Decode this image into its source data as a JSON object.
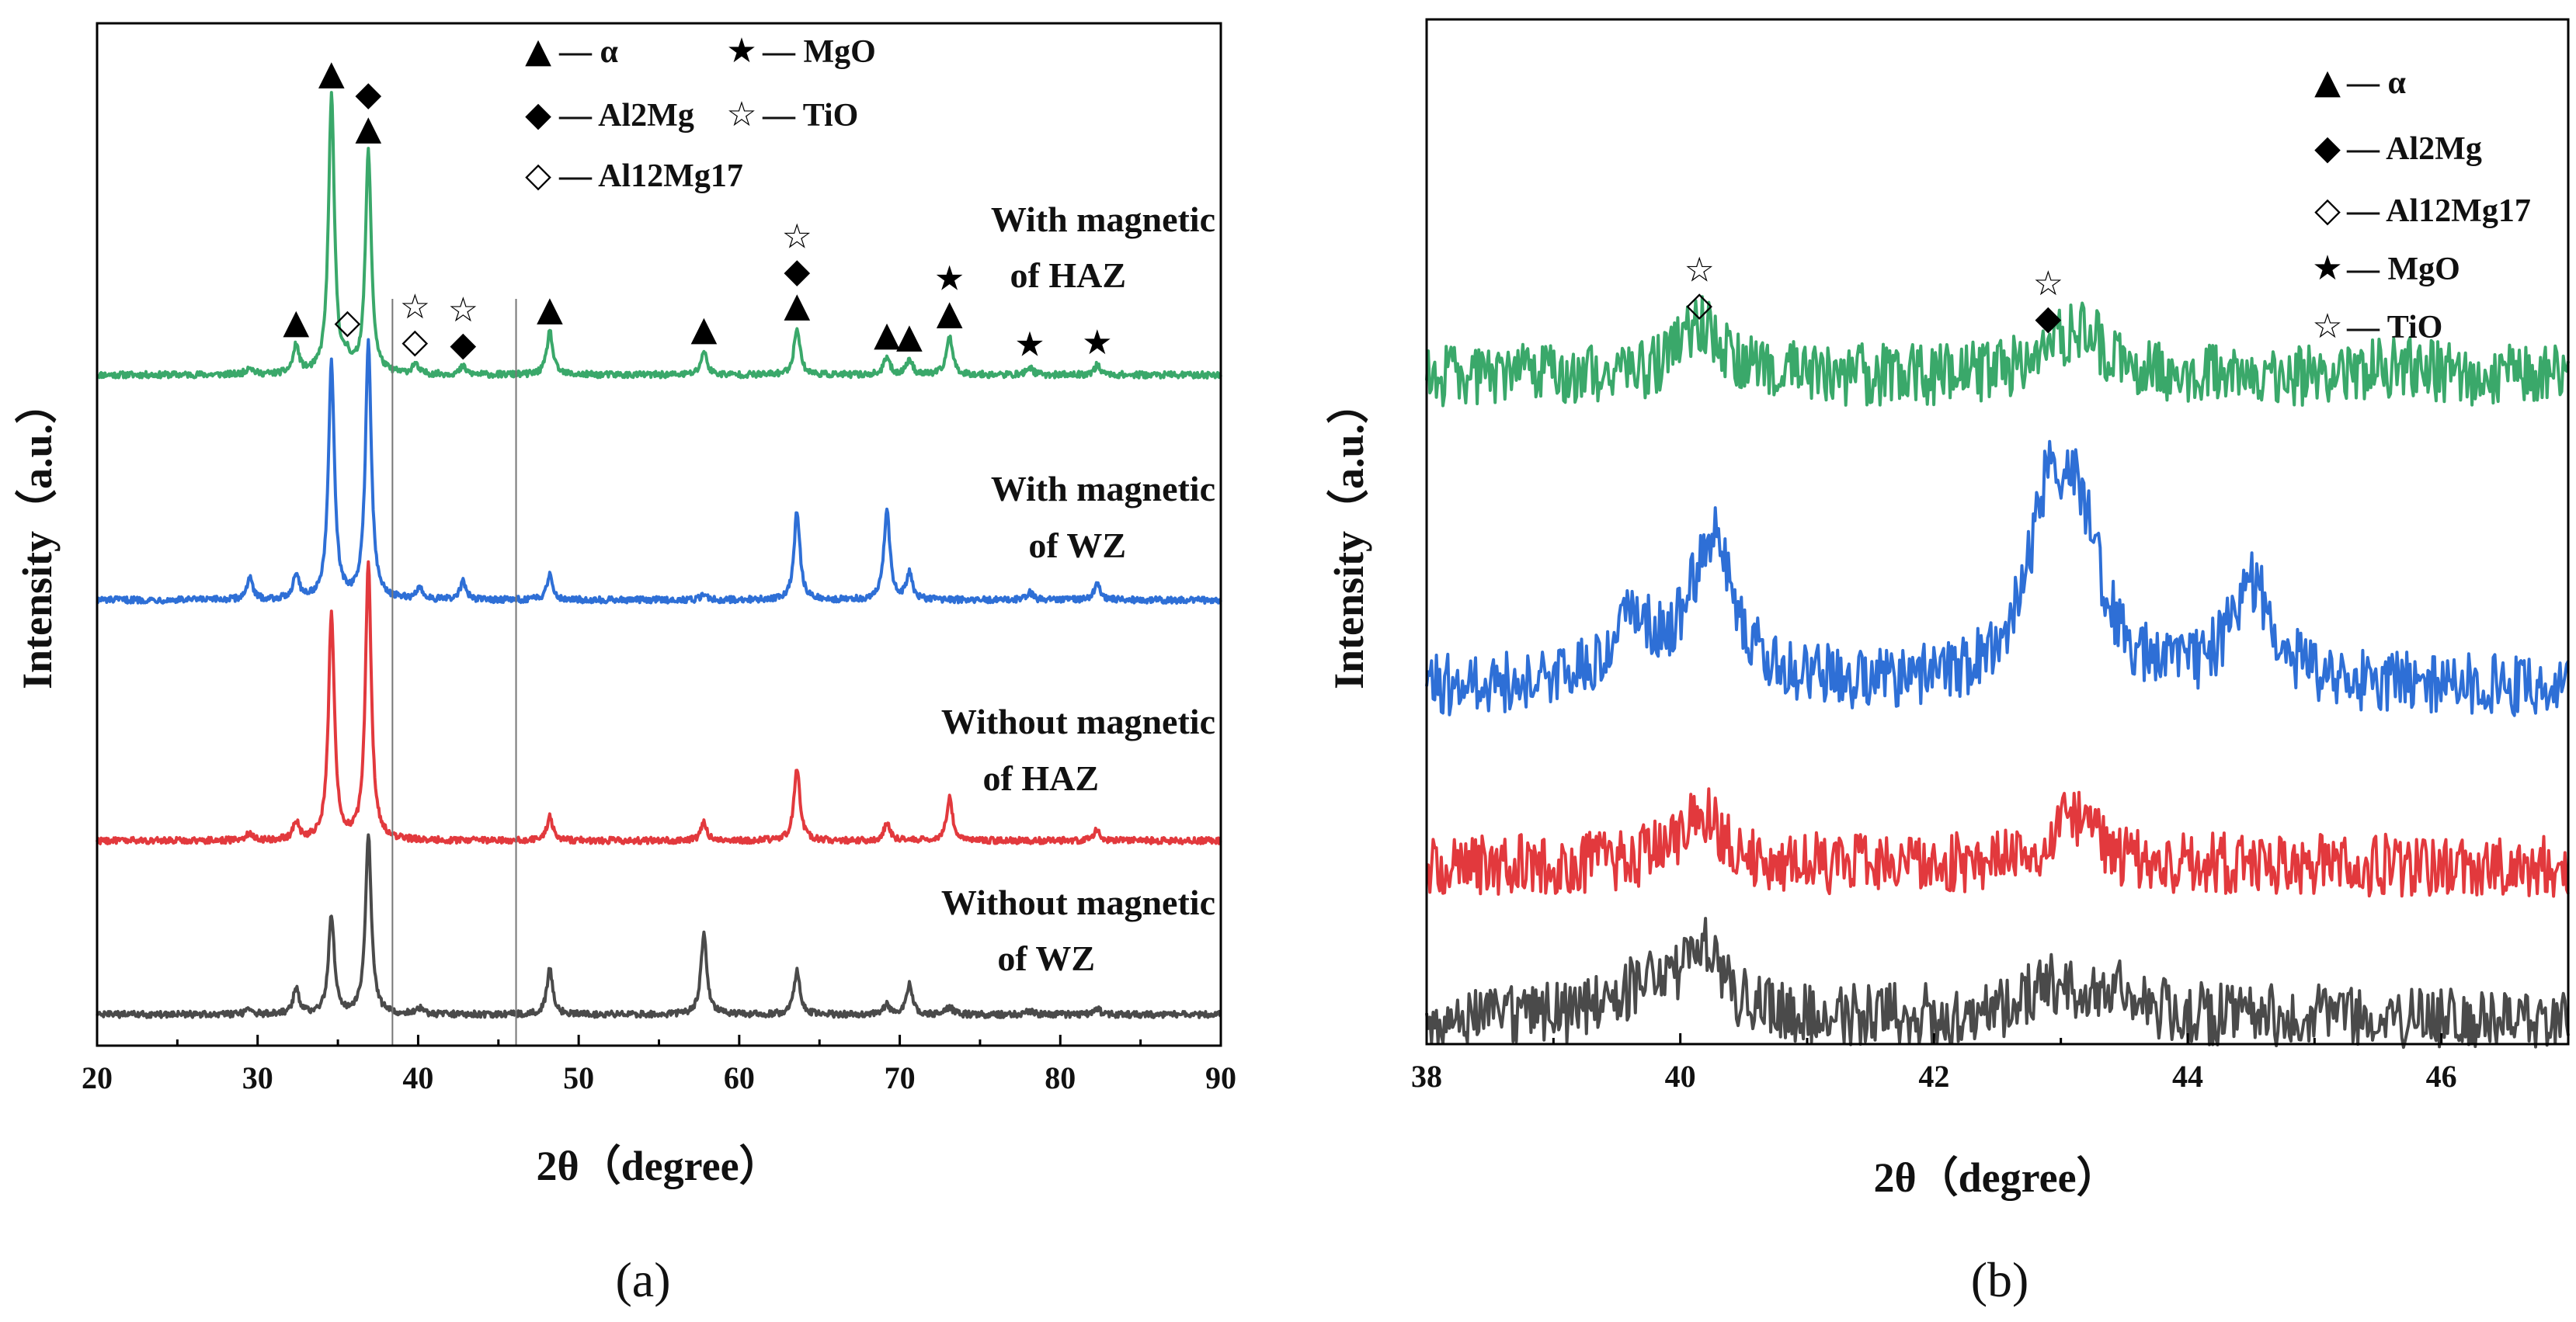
{
  "chart_data": [
    {
      "type": "line",
      "panel_label": "(a)",
      "xlabel": "2θ（degree）",
      "ylabel": "Intensity（a.u.）",
      "xlim": [
        20,
        90
      ],
      "xticks": [
        20,
        30,
        40,
        50,
        60,
        70,
        80,
        90
      ],
      "reference_lines_x": [
        38.4,
        46.1
      ],
      "legend": [
        {
          "symbol": "▲",
          "text": "— α"
        },
        {
          "symbol": "★",
          "text": "— MgO"
        },
        {
          "symbol": "◆",
          "text": "— Al2Mg"
        },
        {
          "symbol": "☆",
          "text": "— TiO"
        },
        {
          "symbol": "◇",
          "text": "— Al12Mg17"
        }
      ],
      "series": [
        {
          "name": "With magnetic of HAZ",
          "label_line1": "With magnetic",
          "label_line2": "of HAZ",
          "color": "#3aa86a",
          "peaks": [
            [
              29.5,
              4
            ],
            [
              32.4,
              14
            ],
            [
              34.6,
              140
            ],
            [
              35.6,
              6
            ],
            [
              36.9,
              112
            ],
            [
              39.8,
              5
            ],
            [
              42.8,
              4
            ],
            [
              48.2,
              22
            ],
            [
              57.8,
              12
            ],
            [
              63.6,
              24
            ],
            [
              69.2,
              9
            ],
            [
              70.6,
              8
            ],
            [
              73.1,
              20
            ],
            [
              78.1,
              4
            ],
            [
              82.3,
              5
            ]
          ]
        },
        {
          "name": "With magnetic of WZ",
          "label_line1": "With magnetic",
          "label_line2": "of WZ",
          "color": "#2e6fd6",
          "peaks": [
            [
              29.5,
              11
            ],
            [
              32.4,
              13
            ],
            [
              34.6,
              120
            ],
            [
              36.9,
              130
            ],
            [
              40.1,
              6
            ],
            [
              42.8,
              9
            ],
            [
              48.2,
              13
            ],
            [
              57.8,
              3
            ],
            [
              63.6,
              45
            ],
            [
              69.2,
              46
            ],
            [
              70.6,
              13
            ],
            [
              78.1,
              4
            ],
            [
              82.3,
              9
            ]
          ]
        },
        {
          "name": "Without magnetic of HAZ",
          "label_line1": "Without magnetic",
          "label_line2": "of HAZ",
          "color": "#e2393d",
          "peaks": [
            [
              29.5,
              4
            ],
            [
              32.4,
              9
            ],
            [
              34.6,
              115
            ],
            [
              36.9,
              140
            ],
            [
              48.2,
              12
            ],
            [
              57.8,
              9
            ],
            [
              63.6,
              37
            ],
            [
              69.2,
              9
            ],
            [
              73.1,
              22
            ],
            [
              82.3,
              6
            ]
          ]
        },
        {
          "name": "Without magnetic of WZ",
          "label_line1": "Without magnetic",
          "label_line2": "of WZ",
          "color": "#4a4a4a",
          "peaks": [
            [
              29.5,
              3
            ],
            [
              32.4,
              13
            ],
            [
              34.6,
              50
            ],
            [
              36.9,
              91
            ],
            [
              40.1,
              3
            ],
            [
              48.2,
              23
            ],
            [
              57.8,
              41
            ],
            [
              63.6,
              22
            ],
            [
              69.2,
              5
            ],
            [
              70.6,
              15
            ],
            [
              73.1,
              4
            ],
            [
              78.1,
              2
            ],
            [
              82.3,
              3
            ]
          ]
        }
      ],
      "peak_annotations": [
        {
          "x": 32.4,
          "symbols": [
            "▲"
          ]
        },
        {
          "x": 34.6,
          "symbols": [
            "▲"
          ]
        },
        {
          "x": 35.6,
          "symbols": [
            "◇"
          ]
        },
        {
          "x": 36.9,
          "symbols": [
            "◆",
            "▲"
          ]
        },
        {
          "x": 39.8,
          "symbols": [
            "☆",
            "◇"
          ]
        },
        {
          "x": 42.8,
          "symbols": [
            "☆",
            "◆"
          ]
        },
        {
          "x": 48.2,
          "symbols": [
            "▲"
          ]
        },
        {
          "x": 57.8,
          "symbols": [
            "▲"
          ]
        },
        {
          "x": 63.6,
          "symbols": [
            "☆",
            "◆",
            "▲"
          ]
        },
        {
          "x": 69.2,
          "symbols": [
            "▲"
          ]
        },
        {
          "x": 70.6,
          "symbols": [
            "▲"
          ]
        },
        {
          "x": 73.1,
          "symbols": [
            "★",
            "▲"
          ]
        },
        {
          "x": 78.1,
          "symbols": [
            "★"
          ]
        },
        {
          "x": 82.3,
          "symbols": [
            "★"
          ]
        }
      ]
    },
    {
      "type": "line",
      "panel_label": "(b)",
      "xlabel": "2θ（degree）",
      "ylabel": "Intensity（a.u.）",
      "xlim": [
        38,
        47
      ],
      "xticks": [
        38,
        40,
        42,
        44,
        46
      ],
      "legend": [
        {
          "symbol": "▲",
          "text": "— α"
        },
        {
          "symbol": "◆",
          "text": "— Al2Mg"
        },
        {
          "symbol": "◇",
          "text": "— Al12Mg17"
        },
        {
          "symbol": "★",
          "text": "— MgO"
        },
        {
          "symbol": "☆",
          "text": "— TiO"
        }
      ],
      "series": [
        {
          "name": "With magnetic of HAZ",
          "color": "#3aa86a",
          "peaks": [
            [
              40.15,
              8
            ],
            [
              42.9,
              4
            ],
            [
              43.2,
              6
            ],
            [
              45.7,
              2
            ]
          ]
        },
        {
          "name": "With magnetic of WZ",
          "color": "#2e6fd6",
          "peaks": [
            [
              39.6,
              10
            ],
            [
              40.25,
              24
            ],
            [
              42.9,
              26
            ],
            [
              43.15,
              22
            ],
            [
              44.5,
              16
            ]
          ]
        },
        {
          "name": "Without magnetic of HAZ",
          "color": "#e2393d",
          "peaks": [
            [
              40.15,
              9
            ],
            [
              43.1,
              8
            ]
          ]
        },
        {
          "name": "Without magnetic of WZ",
          "color": "#4a4a4a",
          "peaks": [
            [
              39.7,
              4
            ],
            [
              40.15,
              11
            ],
            [
              42.9,
              5
            ],
            [
              43.4,
              5
            ]
          ]
        }
      ],
      "peak_annotations": [
        {
          "x": 40.15,
          "symbols": [
            "☆",
            "◇"
          ]
        },
        {
          "x": 42.9,
          "symbols": [
            "☆",
            "◆"
          ]
        }
      ]
    }
  ]
}
